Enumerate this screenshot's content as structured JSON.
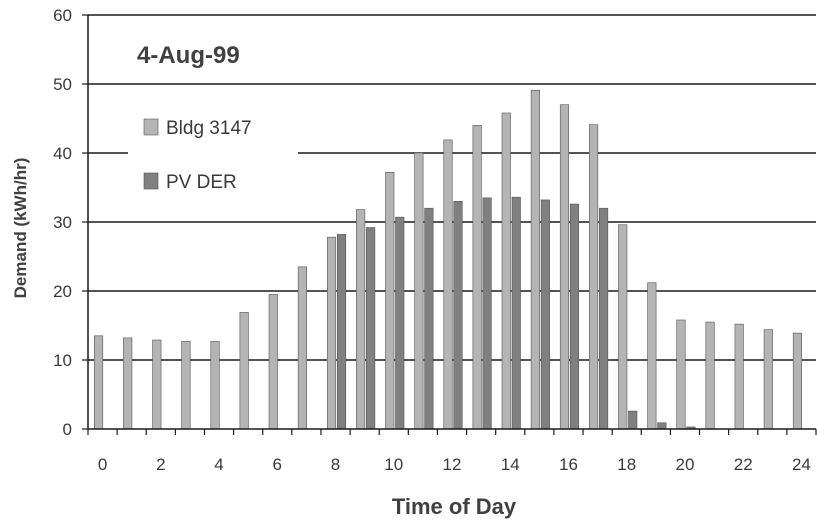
{
  "chart_data": {
    "type": "bar",
    "title": "4-Aug-99",
    "xlabel": "Time of Day",
    "ylabel": "Demand (kWh/hr)",
    "ylim": [
      0,
      60
    ],
    "xlim": [
      0,
      24
    ],
    "y_ticks": [
      "0",
      "10",
      "20",
      "30",
      "40",
      "50",
      "60"
    ],
    "x_ticks": [
      "0",
      "2",
      "4",
      "6",
      "8",
      "10",
      "12",
      "14",
      "16",
      "18",
      "20",
      "22",
      "24"
    ],
    "grid": "horizontal",
    "legend_position": "top-left",
    "categories": [
      "0",
      "1",
      "2",
      "3",
      "4",
      "5",
      "6",
      "7",
      "8",
      "9",
      "10",
      "11",
      "12",
      "13",
      "14",
      "15",
      "16",
      "17",
      "18",
      "19",
      "20",
      "21",
      "22",
      "23",
      "24"
    ],
    "series": [
      {
        "name": "Bldg 3147",
        "color": "#b4b4b4",
        "values": [
          13.5,
          13.2,
          12.9,
          12.7,
          12.7,
          16.9,
          19.5,
          23.5,
          27.8,
          31.8,
          37.2,
          40.0,
          41.9,
          44.0,
          45.8,
          49.1,
          47.0,
          44.1,
          29.6,
          21.2,
          15.8,
          15.5,
          15.2,
          14.4,
          13.9
        ]
      },
      {
        "name": "PV DER",
        "color": "#808080",
        "values": [
          0,
          0,
          0,
          0,
          0,
          0,
          0,
          0,
          28.2,
          29.2,
          30.7,
          32.0,
          33.0,
          33.5,
          33.6,
          33.2,
          32.6,
          32.0,
          2.6,
          0.9,
          0.3,
          0,
          0,
          0,
          0
        ]
      }
    ]
  }
}
